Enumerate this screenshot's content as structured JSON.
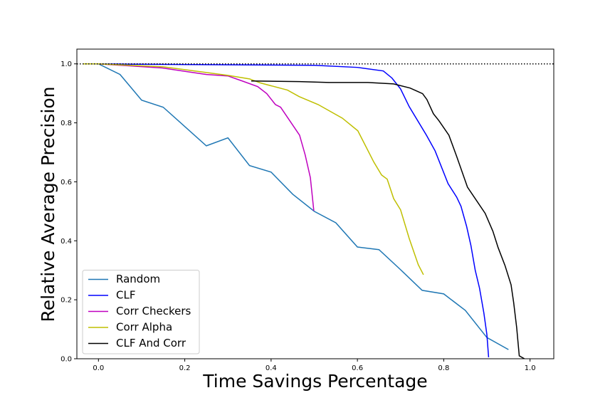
{
  "chart_data": {
    "type": "line",
    "xlabel": "Time Savings Percentage",
    "ylabel": "Relative Average Precision",
    "xlim": [
      -0.05,
      1.055
    ],
    "ylim": [
      0,
      1.05
    ],
    "xticks": [
      {
        "value": 0,
        "label": "0.0"
      },
      0.2,
      0.4,
      0.6,
      0.8,
      {
        "value": 1,
        "label": "1.0"
      }
    ],
    "yticks": [
      {
        "value": 0,
        "label": "0.0"
      },
      0.2,
      0.4,
      0.6,
      0.8,
      {
        "value": 1,
        "label": "1.0"
      }
    ],
    "hline": 1,
    "legend": "lower left",
    "grid": false,
    "series": [
      {
        "name": "Random",
        "color": "#1f77b4",
        "x": [
          -0.035,
          0,
          0.05,
          0.1,
          0.15,
          0.25,
          0.3,
          0.35,
          0.4,
          0.45,
          0.5,
          0.55,
          0.6,
          0.65,
          0.7,
          0.75,
          0.8,
          0.85,
          0.9,
          0.95
        ],
        "values": [
          1.0,
          1.0,
          0.964,
          0.877,
          0.853,
          0.722,
          0.749,
          0.655,
          0.633,
          0.558,
          0.5,
          0.461,
          0.379,
          0.37,
          0.302,
          0.232,
          0.22,
          0.164,
          0.072,
          0.031
        ]
      },
      {
        "name": "CLF",
        "color": "#0000ff",
        "x": [
          -0.035,
          0.5,
          0.6,
          0.66,
          0.68,
          0.7,
          0.72,
          0.76,
          0.78,
          0.81,
          0.83,
          0.84,
          0.853,
          0.863,
          0.873,
          0.883,
          0.893,
          0.9,
          0.904
        ],
        "values": [
          1.0,
          0.995,
          0.988,
          0.976,
          0.952,
          0.915,
          0.855,
          0.758,
          0.705,
          0.594,
          0.548,
          0.517,
          0.449,
          0.384,
          0.3,
          0.239,
          0.155,
          0.082,
          0.005
        ]
      },
      {
        "name": "Corr Checkers",
        "color": "#bf00bf",
        "x": [
          -0.035,
          0,
          0.148,
          0.25,
          0.3,
          0.333,
          0.369,
          0.39,
          0.41,
          0.422,
          0.441,
          0.466,
          0.479,
          0.491,
          0.499
        ],
        "values": [
          1.0,
          1.0,
          0.986,
          0.964,
          0.959,
          0.942,
          0.923,
          0.899,
          0.862,
          0.853,
          0.812,
          0.758,
          0.691,
          0.614,
          0.502
        ]
      },
      {
        "name": "Corr Alpha",
        "color": "#bfbf00",
        "x": [
          -0.035,
          0,
          0.15,
          0.3,
          0.35,
          0.376,
          0.438,
          0.465,
          0.509,
          0.565,
          0.601,
          0.638,
          0.656,
          0.669,
          0.684,
          0.7,
          0.72,
          0.741,
          0.753
        ],
        "values": [
          1.0,
          1.0,
          0.99,
          0.961,
          0.949,
          0.935,
          0.911,
          0.889,
          0.862,
          0.816,
          0.773,
          0.667,
          0.623,
          0.609,
          0.543,
          0.505,
          0.408,
          0.319,
          0.285
        ]
      },
      {
        "name": "CLF And Corr",
        "color": "#000000",
        "x": [
          0.354,
          0.465,
          0.534,
          0.624,
          0.684,
          0.722,
          0.751,
          0.761,
          0.776,
          0.789,
          0.812,
          0.83,
          0.855,
          0.896,
          0.914,
          0.926,
          0.942,
          0.956,
          0.962,
          0.969,
          0.975,
          0.987
        ],
        "values": [
          0.942,
          0.94,
          0.937,
          0.937,
          0.932,
          0.918,
          0.899,
          0.879,
          0.831,
          0.807,
          0.758,
          0.686,
          0.582,
          0.493,
          0.432,
          0.377,
          0.316,
          0.251,
          0.191,
          0.106,
          0.01,
          0
        ]
      }
    ]
  }
}
